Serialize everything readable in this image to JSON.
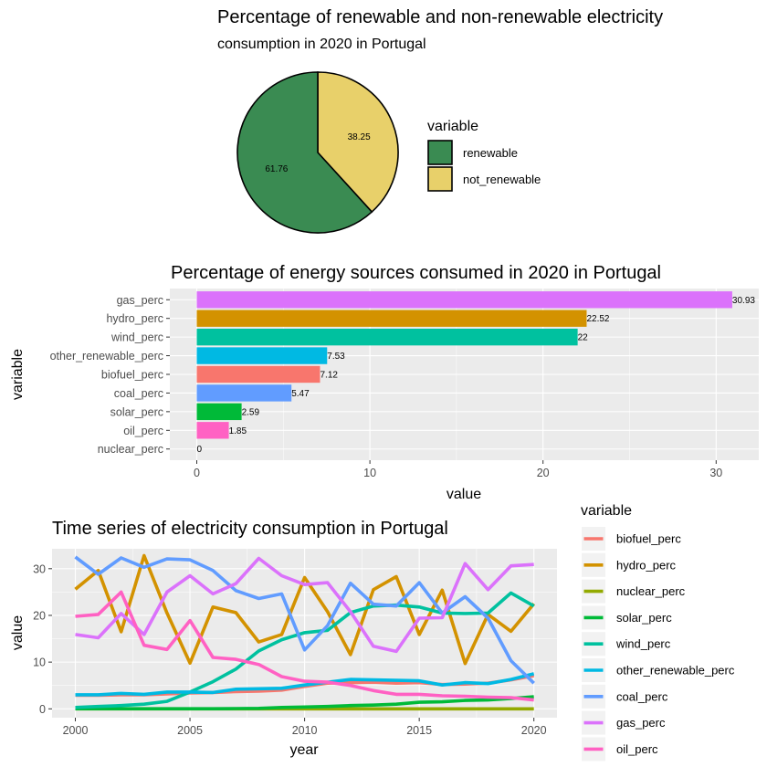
{
  "colors": {
    "renewable": "#3A8B52",
    "not_renewable": "#E8D06A",
    "biofuel_perc": "#F8766D",
    "hydro_perc": "#D39200",
    "nuclear_perc": "#93AA00",
    "solar_perc": "#00BA38",
    "wind_perc": "#00C19F",
    "other_renewable_perc": "#00B9E3",
    "coal_perc": "#619CFF",
    "gas_perc": "#DB72FB",
    "oil_perc": "#FF61C3"
  },
  "chart_data": [
    {
      "type": "pie",
      "title": "Percentage of renewable and non-renewable electricity",
      "subtitle": "consumption in 2020 in Portugal",
      "legend_title": "variable",
      "legend_position": "right",
      "slices": [
        {
          "label": "renewable",
          "value": 61.76,
          "value_label": "61.76"
        },
        {
          "label": "not_renewable",
          "value": 38.25,
          "value_label": "38.25"
        }
      ]
    },
    {
      "type": "bar",
      "orientation": "horizontal",
      "title": "Percentage of energy sources consumed in 2020 in Portugal",
      "xlabel": "value",
      "ylabel": "variable",
      "xlim": [
        0,
        32
      ],
      "xticks": [
        0,
        10,
        20,
        30
      ],
      "grid": true,
      "categories": [
        "gas_perc",
        "hydro_perc",
        "wind_perc",
        "other_renewable_perc",
        "biofuel_perc",
        "coal_perc",
        "solar_perc",
        "oil_perc",
        "nuclear_perc"
      ],
      "values": [
        30.93,
        22.52,
        22,
        7.53,
        7.12,
        5.47,
        2.59,
        1.85,
        0
      ],
      "value_labels": [
        "30.93",
        "22.52",
        "22",
        "7.53",
        "7.12",
        "5.47",
        "2.59",
        "1.85",
        "0"
      ]
    },
    {
      "type": "line",
      "title": "Time series of electricity consumption in Portugal",
      "xlabel": "year",
      "ylabel": "value",
      "xlim": [
        2000,
        2020
      ],
      "ylim": [
        0,
        33
      ],
      "xticks": [
        2000,
        2005,
        2010,
        2015,
        2020
      ],
      "yticks": [
        0,
        10,
        20,
        30
      ],
      "grid": true,
      "legend_title": "variable",
      "legend_position": "right",
      "x": [
        2000,
        2001,
        2002,
        2003,
        2004,
        2005,
        2006,
        2007,
        2008,
        2009,
        2010,
        2011,
        2012,
        2013,
        2014,
        2015,
        2016,
        2017,
        2018,
        2019,
        2020
      ],
      "series": [
        {
          "name": "biofuel_perc",
          "values": [
            2.9,
            2.9,
            3.0,
            3.0,
            3.2,
            3.4,
            3.5,
            3.7,
            3.8,
            4.0,
            4.8,
            5.5,
            5.6,
            5.7,
            5.5,
            5.6,
            5.2,
            5.3,
            5.5,
            6.2,
            7.1
          ]
        },
        {
          "name": "hydro_perc",
          "values": [
            25.6,
            29.6,
            16.5,
            32.8,
            20.5,
            9.8,
            21.8,
            20.6,
            14.3,
            15.9,
            28.1,
            20.8,
            11.6,
            25.5,
            28.3,
            15.9,
            25.4,
            9.7,
            20.2,
            16.6,
            22.5
          ]
        },
        {
          "name": "nuclear_perc",
          "values": [
            0,
            0,
            0,
            0,
            0,
            0,
            0,
            0,
            0,
            0,
            0,
            0,
            0,
            0,
            0,
            0,
            0,
            0,
            0,
            0,
            0
          ]
        },
        {
          "name": "solar_perc",
          "values": [
            0.01,
            0.01,
            0.01,
            0.01,
            0.01,
            0.01,
            0.02,
            0.05,
            0.1,
            0.3,
            0.4,
            0.5,
            0.7,
            0.8,
            1.0,
            1.4,
            1.5,
            1.8,
            1.9,
            2.2,
            2.6
          ]
        },
        {
          "name": "wind_perc",
          "values": [
            0.3,
            0.5,
            0.7,
            1.0,
            1.6,
            3.6,
            5.8,
            8.5,
            12.4,
            14.8,
            16.3,
            16.8,
            20.6,
            22.0,
            22.2,
            21.8,
            20.5,
            20.4,
            20.5,
            24.8,
            22.0
          ]
        },
        {
          "name": "other_renewable_perc",
          "values": [
            3.0,
            3.0,
            3.3,
            3.1,
            3.6,
            3.6,
            3.5,
            4.2,
            4.3,
            4.4,
            5.1,
            5.7,
            6.3,
            6.2,
            6.1,
            6.0,
            5.1,
            5.6,
            5.4,
            6.3,
            7.5
          ]
        },
        {
          "name": "coal_perc",
          "values": [
            32.5,
            28.8,
            32.3,
            30.3,
            32.1,
            31.9,
            29.6,
            25.3,
            23.6,
            24.6,
            12.6,
            17.8,
            26.9,
            22.4,
            22.0,
            27.0,
            20.5,
            24.0,
            19.4,
            10.3,
            5.5
          ]
        },
        {
          "name": "gas_perc",
          "values": [
            15.9,
            15.2,
            20.4,
            15.9,
            25.0,
            28.5,
            24.6,
            26.8,
            32.2,
            28.5,
            26.6,
            27.0,
            20.8,
            13.4,
            12.3,
            19.4,
            19.5,
            31.1,
            25.5,
            30.6,
            30.9
          ]
        },
        {
          "name": "oil_perc",
          "values": [
            19.8,
            20.2,
            25.0,
            13.6,
            12.7,
            18.9,
            11.0,
            10.6,
            9.5,
            6.9,
            5.9,
            5.7,
            5.0,
            3.9,
            3.1,
            3.1,
            2.8,
            2.7,
            2.5,
            2.4,
            1.9
          ]
        }
      ]
    }
  ]
}
